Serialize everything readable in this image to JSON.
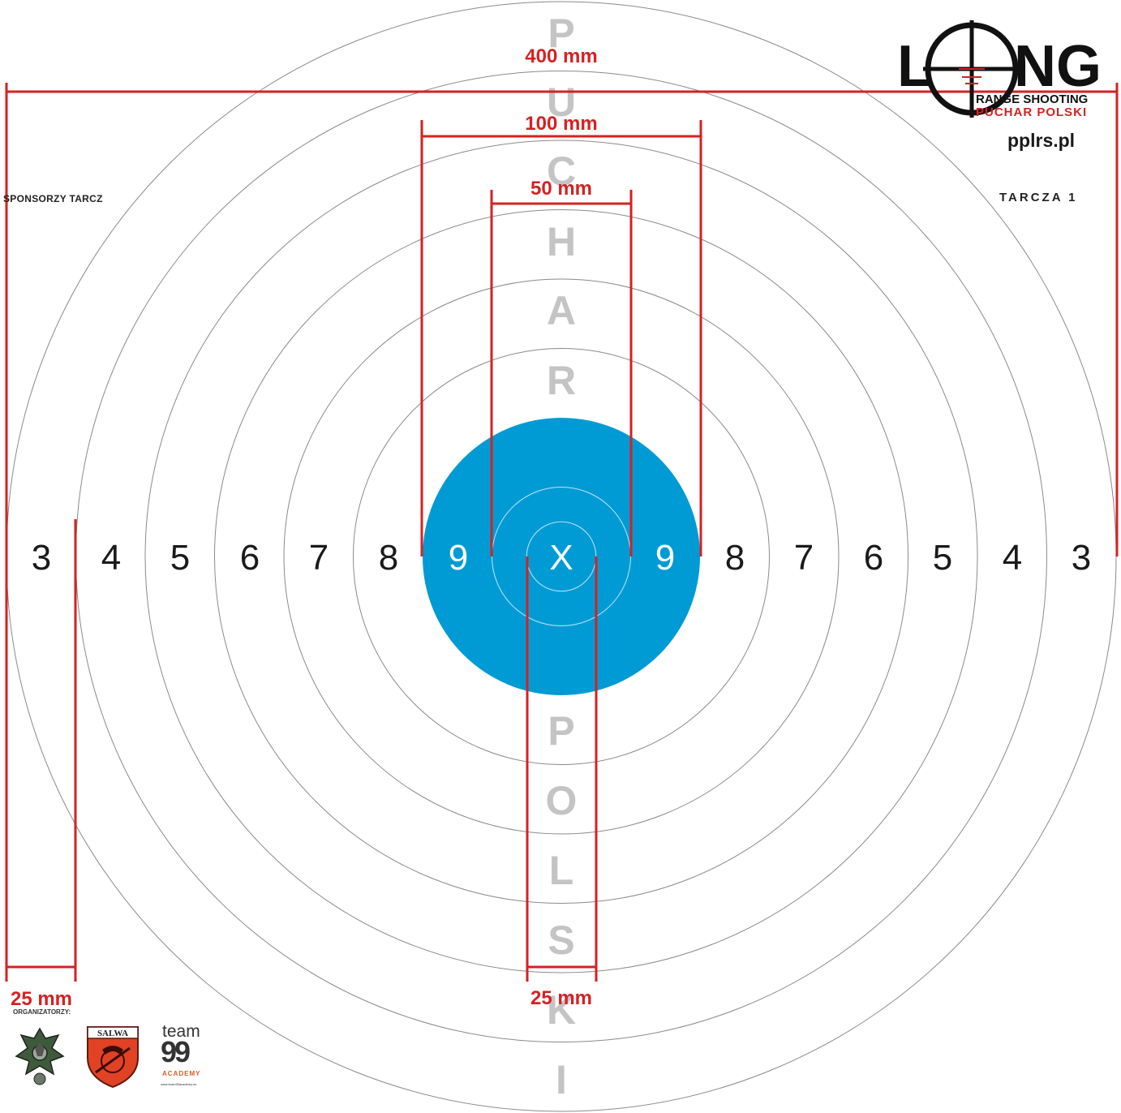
{
  "target": {
    "ring_scores_left": [
      "3",
      "4",
      "5",
      "6",
      "7",
      "8",
      "9"
    ],
    "center_label": "X",
    "ring_scores_right": [
      "9",
      "8",
      "7",
      "6",
      "5",
      "4",
      "3"
    ],
    "vertical_letters_top": [
      "P",
      "U",
      "C",
      "H",
      "A",
      "R"
    ],
    "vertical_letters_bottom": [
      "P",
      "O",
      "L",
      "S",
      "K",
      "I"
    ],
    "colors": {
      "ring_line": "#8a8a8a",
      "bullseye": "#009bd4",
      "measure": "#d42222",
      "letters": "#c4c4c4"
    }
  },
  "measurements": {
    "m400": "400 mm",
    "m100": "100 mm",
    "m50": "50 mm",
    "m25_left": "25 mm",
    "m25_center": "25 mm"
  },
  "header": {
    "sponsors": "SPONSORZY TARCZ",
    "target_name": "TARCZA 1",
    "website": "pplrs.pl",
    "logo": {
      "word_l": "L",
      "word_ng": "NG",
      "subtitle1": "RANGE SHOOTING",
      "subtitle2": "PUCHAR POLSKI"
    }
  },
  "footer": {
    "organizers": "ORGANIZATORZY:",
    "salwa": "SALWA",
    "team_word": "team",
    "team_number": "99",
    "team_sub": "ACADEMY",
    "team_url": "www.team99academy.eu"
  },
  "icons": {
    "crosshair": "crosshair-icon",
    "eagle_emblem": "eagle-emblem-icon",
    "salwa_shield": "salwa-shield-icon"
  }
}
